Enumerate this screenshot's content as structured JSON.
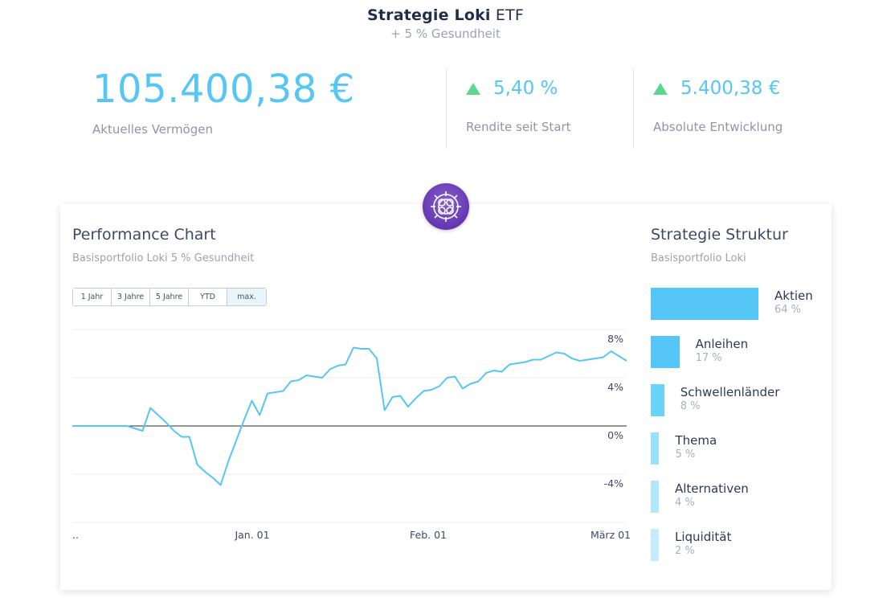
{
  "header": {
    "title_bold": "Strategie Loki",
    "title_rest": "ETF",
    "subtitle": "+ 5 % Gesundheit"
  },
  "kpis": {
    "wealth": {
      "value": "105.400,38 €",
      "label": "Aktuelles Vermögen"
    },
    "return": {
      "value": "5,40 %",
      "label": "Rendite seit Start"
    },
    "absolute": {
      "value": "5.400,38 €",
      "label": "Absolute Entwicklung"
    }
  },
  "colors": {
    "accent": "#55c6f6",
    "up": "#5fd68d",
    "logo": "#6437b0"
  },
  "performance": {
    "title": "Performance Chart",
    "subtitle": "Basisportfolio Loki 5 % Gesundheit",
    "ranges": [
      {
        "label": "1 Jahr",
        "active": false
      },
      {
        "label": "3 Jahre",
        "active": false
      },
      {
        "label": "5 Jahre",
        "active": false
      },
      {
        "label": "YTD",
        "active": false
      },
      {
        "label": "max.",
        "active": true
      }
    ]
  },
  "chart_data": {
    "type": "line",
    "title": "Performance Chart",
    "xlabel": "",
    "ylabel": "",
    "x_ticks": [
      "..",
      "Jan. 01",
      "Feb. 01",
      "März 01"
    ],
    "y_ticks": [
      "8%",
      "4%",
      "0%",
      "-4%"
    ],
    "y_tick_values": [
      8,
      4,
      0,
      -4
    ],
    "ylim": [
      -8,
      8
    ],
    "grid": true,
    "series": [
      {
        "values": [
          0,
          0,
          0,
          0,
          0,
          0,
          0,
          0,
          -0.2,
          -0.4,
          1.5,
          0.9,
          0.3,
          -0.4,
          -0.9,
          -0.9,
          -3.2,
          -3.8,
          -4.3,
          -4.9,
          -2.9,
          -1.2,
          0.5,
          2.1,
          0.9,
          2.7,
          2.8,
          2.9,
          3.7,
          3.8,
          4.2,
          4.1,
          4.0,
          4.7,
          5.0,
          5.1,
          6.5,
          6.4,
          6.4,
          5.6,
          1.3,
          2.4,
          2.5,
          1.6,
          2.3,
          2.9,
          3.0,
          3.3,
          4.0,
          4.1,
          3.1,
          3.5,
          3.7,
          4.4,
          4.6,
          4.5,
          5.1,
          5.2,
          5.3,
          5.5,
          5.5,
          5.8,
          6.1,
          6.0,
          5.6,
          5.4,
          5.5,
          5.6,
          5.7,
          6.2,
          5.8,
          5.4
        ]
      }
    ]
  },
  "structure": {
    "title": "Strategie Struktur",
    "subtitle": "Basisportfolio Loki",
    "items": [
      {
        "name": "Aktien",
        "pct_label": "64 %",
        "value": 64,
        "color": "#55c6f6"
      },
      {
        "name": "Anleihen",
        "pct_label": "17 %",
        "value": 17,
        "color": "#55c6f6"
      },
      {
        "name": "Schwellenländer",
        "pct_label": "8 %",
        "value": 8,
        "color": "#6cd3f8"
      },
      {
        "name": "Thema",
        "pct_label": "5 %",
        "value": 5,
        "color": "#9ae0fa"
      },
      {
        "name": "Alternativen",
        "pct_label": "4 %",
        "value": 4,
        "color": "#b3e8fb"
      },
      {
        "name": "Liquidität",
        "pct_label": "2 %",
        "value": 2,
        "color": "#c3edfc"
      }
    ]
  }
}
